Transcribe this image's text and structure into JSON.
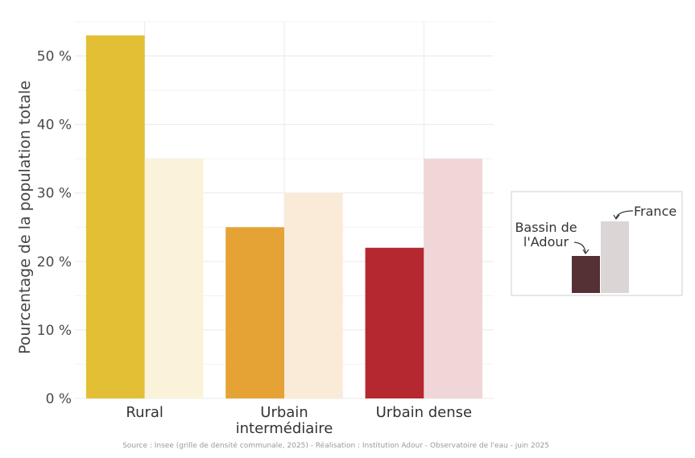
{
  "chart_data": {
    "type": "bar",
    "categories": [
      "Rural",
      "Urbain\nintermédiaire",
      "Urbain dense"
    ],
    "series": [
      {
        "name": "Bassin de l'Adour",
        "values": [
          53,
          25,
          22
        ]
      },
      {
        "name": "France",
        "values": [
          35,
          30,
          35
        ]
      }
    ],
    "colors": {
      "bassin": [
        "#e3bf35",
        "#e5a335",
        "#b5282f"
      ],
      "france": [
        "#faf3da",
        "#faebd8",
        "#f0d6d7"
      ]
    },
    "ylabel": "Pourcentage de la population totale",
    "ylim": [
      0,
      55
    ],
    "yticks": [
      {
        "value": 0,
        "label": "0 %"
      },
      {
        "value": 10,
        "label": "10 %"
      },
      {
        "value": 20,
        "label": "20 %"
      },
      {
        "value": 30,
        "label": "30 %"
      },
      {
        "value": 40,
        "label": "40 %"
      },
      {
        "value": 50,
        "label": "50 %"
      }
    ],
    "grid": true,
    "legend": {
      "placement": "right",
      "bassin_label_lines": [
        "Bassin de",
        "l'Adour"
      ],
      "france_label": "France",
      "bassin_color": "#553135",
      "france_color": "#dcd5d5"
    },
    "source": "Source : Insee (grille de densité communale, 2025) - Réalisation : Institution Adour - Observatoire de l'eau - juin 2025"
  }
}
